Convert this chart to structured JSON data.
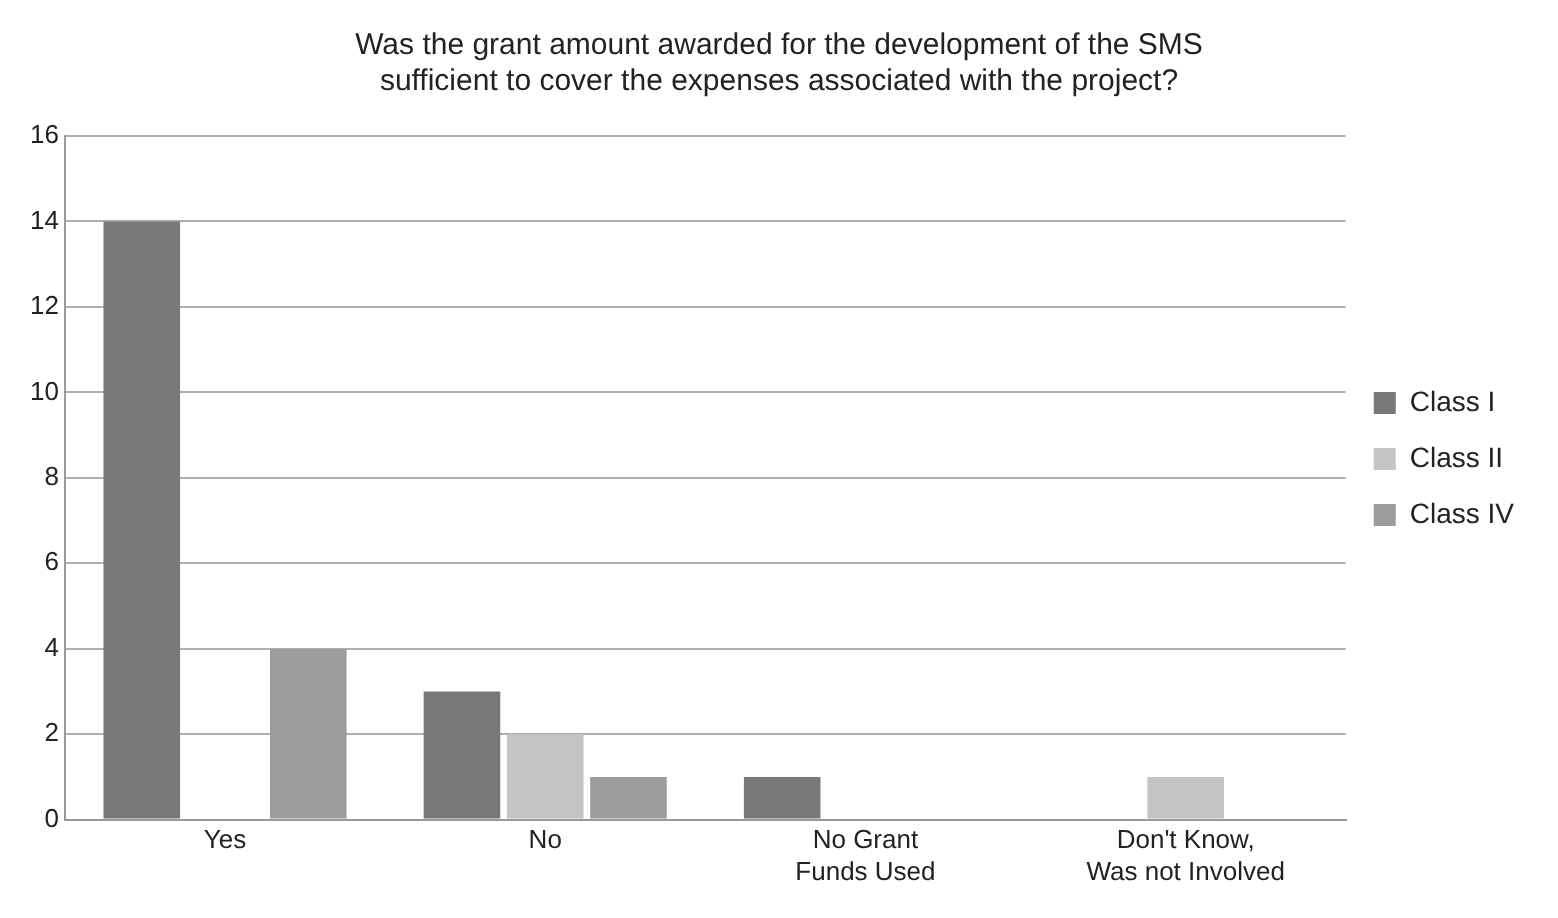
{
  "chart_data": {
    "type": "bar",
    "title": "Was the grant amount awarded for the development of the SMS sufficient to cover the expenses associated with the project?",
    "categories": [
      "Yes",
      "No",
      "No Grant Funds Used",
      "Don't Know, Was not Involved"
    ],
    "series": [
      {
        "name": "Class I",
        "color": "#787878",
        "values": [
          14,
          3,
          1,
          0
        ]
      },
      {
        "name": "Class II",
        "color": "#c4c4c4",
        "values": [
          0,
          2,
          0,
          1
        ]
      },
      {
        "name": "Class IV",
        "color": "#9c9c9c",
        "values": [
          4,
          1,
          0,
          0
        ]
      }
    ],
    "ylim": [
      0,
      16
    ],
    "yticks": [
      0,
      2,
      4,
      6,
      8,
      10,
      12,
      14,
      16
    ],
    "grid": "y",
    "legend": "right"
  }
}
